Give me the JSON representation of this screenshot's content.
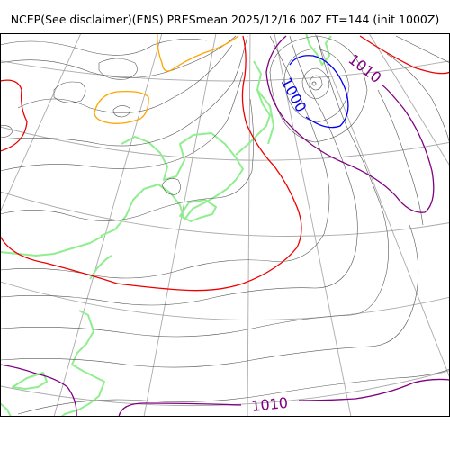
{
  "title": "NCEP(See disclaimer)(ENS) PRESmean 2025/12/16 00Z FT=144 (init 1000Z)",
  "colors": {
    "isobar": "#555555",
    "graticule": "#aaaaaa",
    "coast": "#90ee90",
    "c1000": "#0000ee",
    "c1010": "#800080",
    "c1020": "#ee0000",
    "c1030": "#ffa500"
  },
  "labels": {
    "low_1000": "1000",
    "low_1010": "1010",
    "south_1010": "1010"
  }
}
